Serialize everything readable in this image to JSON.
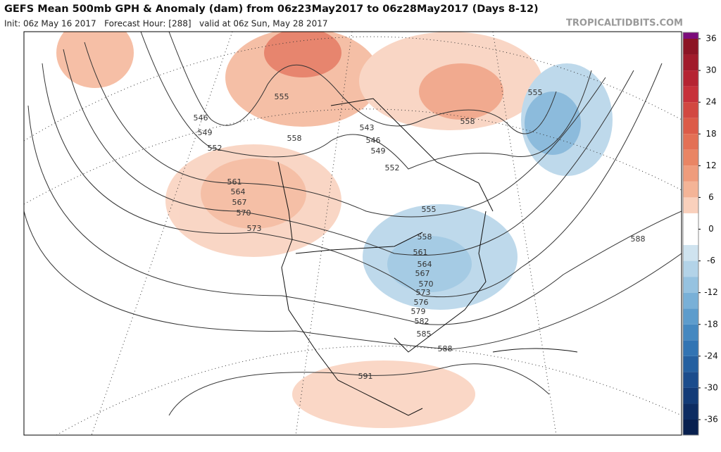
{
  "header": {
    "title": "GEFS Mean 500mb GPH & Anomaly (dam) from 06z23May2017 to 06z28May2017 (Days 8-12)",
    "subtitle": "Init: 06z May 16 2017   Forecast Hour: [288]   valid at 06z Sun, May 28 2017",
    "brand": "TROPICALTIDBITS.COM"
  },
  "colorbar": {
    "ticks": [
      36,
      30,
      24,
      18,
      12,
      6,
      0,
      -6,
      -12,
      -18,
      -24,
      -30,
      -36
    ],
    "colors": [
      "#7b0b7a",
      "#8c1424",
      "#a11b2b",
      "#b52432",
      "#c7313a",
      "#d24841",
      "#dc5b48",
      "#e37055",
      "#e98564",
      "#ef9c7c",
      "#f4b497",
      "#f9d0bc",
      "#ffffff",
      "#ffffff",
      "#cfe3ef",
      "#b3d3e8",
      "#96c2e0",
      "#79b0d7",
      "#5d9ccc",
      "#4588c0",
      "#3274b3",
      "#2560a0",
      "#1b4c8c",
      "#133b77",
      "#0d2c62",
      "#08204f"
    ]
  },
  "contour_labels": [
    546,
    549,
    552,
    555,
    558,
    561,
    564,
    567,
    570,
    573,
    555,
    543,
    546,
    549,
    552,
    558,
    555,
    558,
    561,
    564,
    567,
    570,
    573,
    576,
    579,
    582,
    585,
    588,
    588,
    591
  ]
}
